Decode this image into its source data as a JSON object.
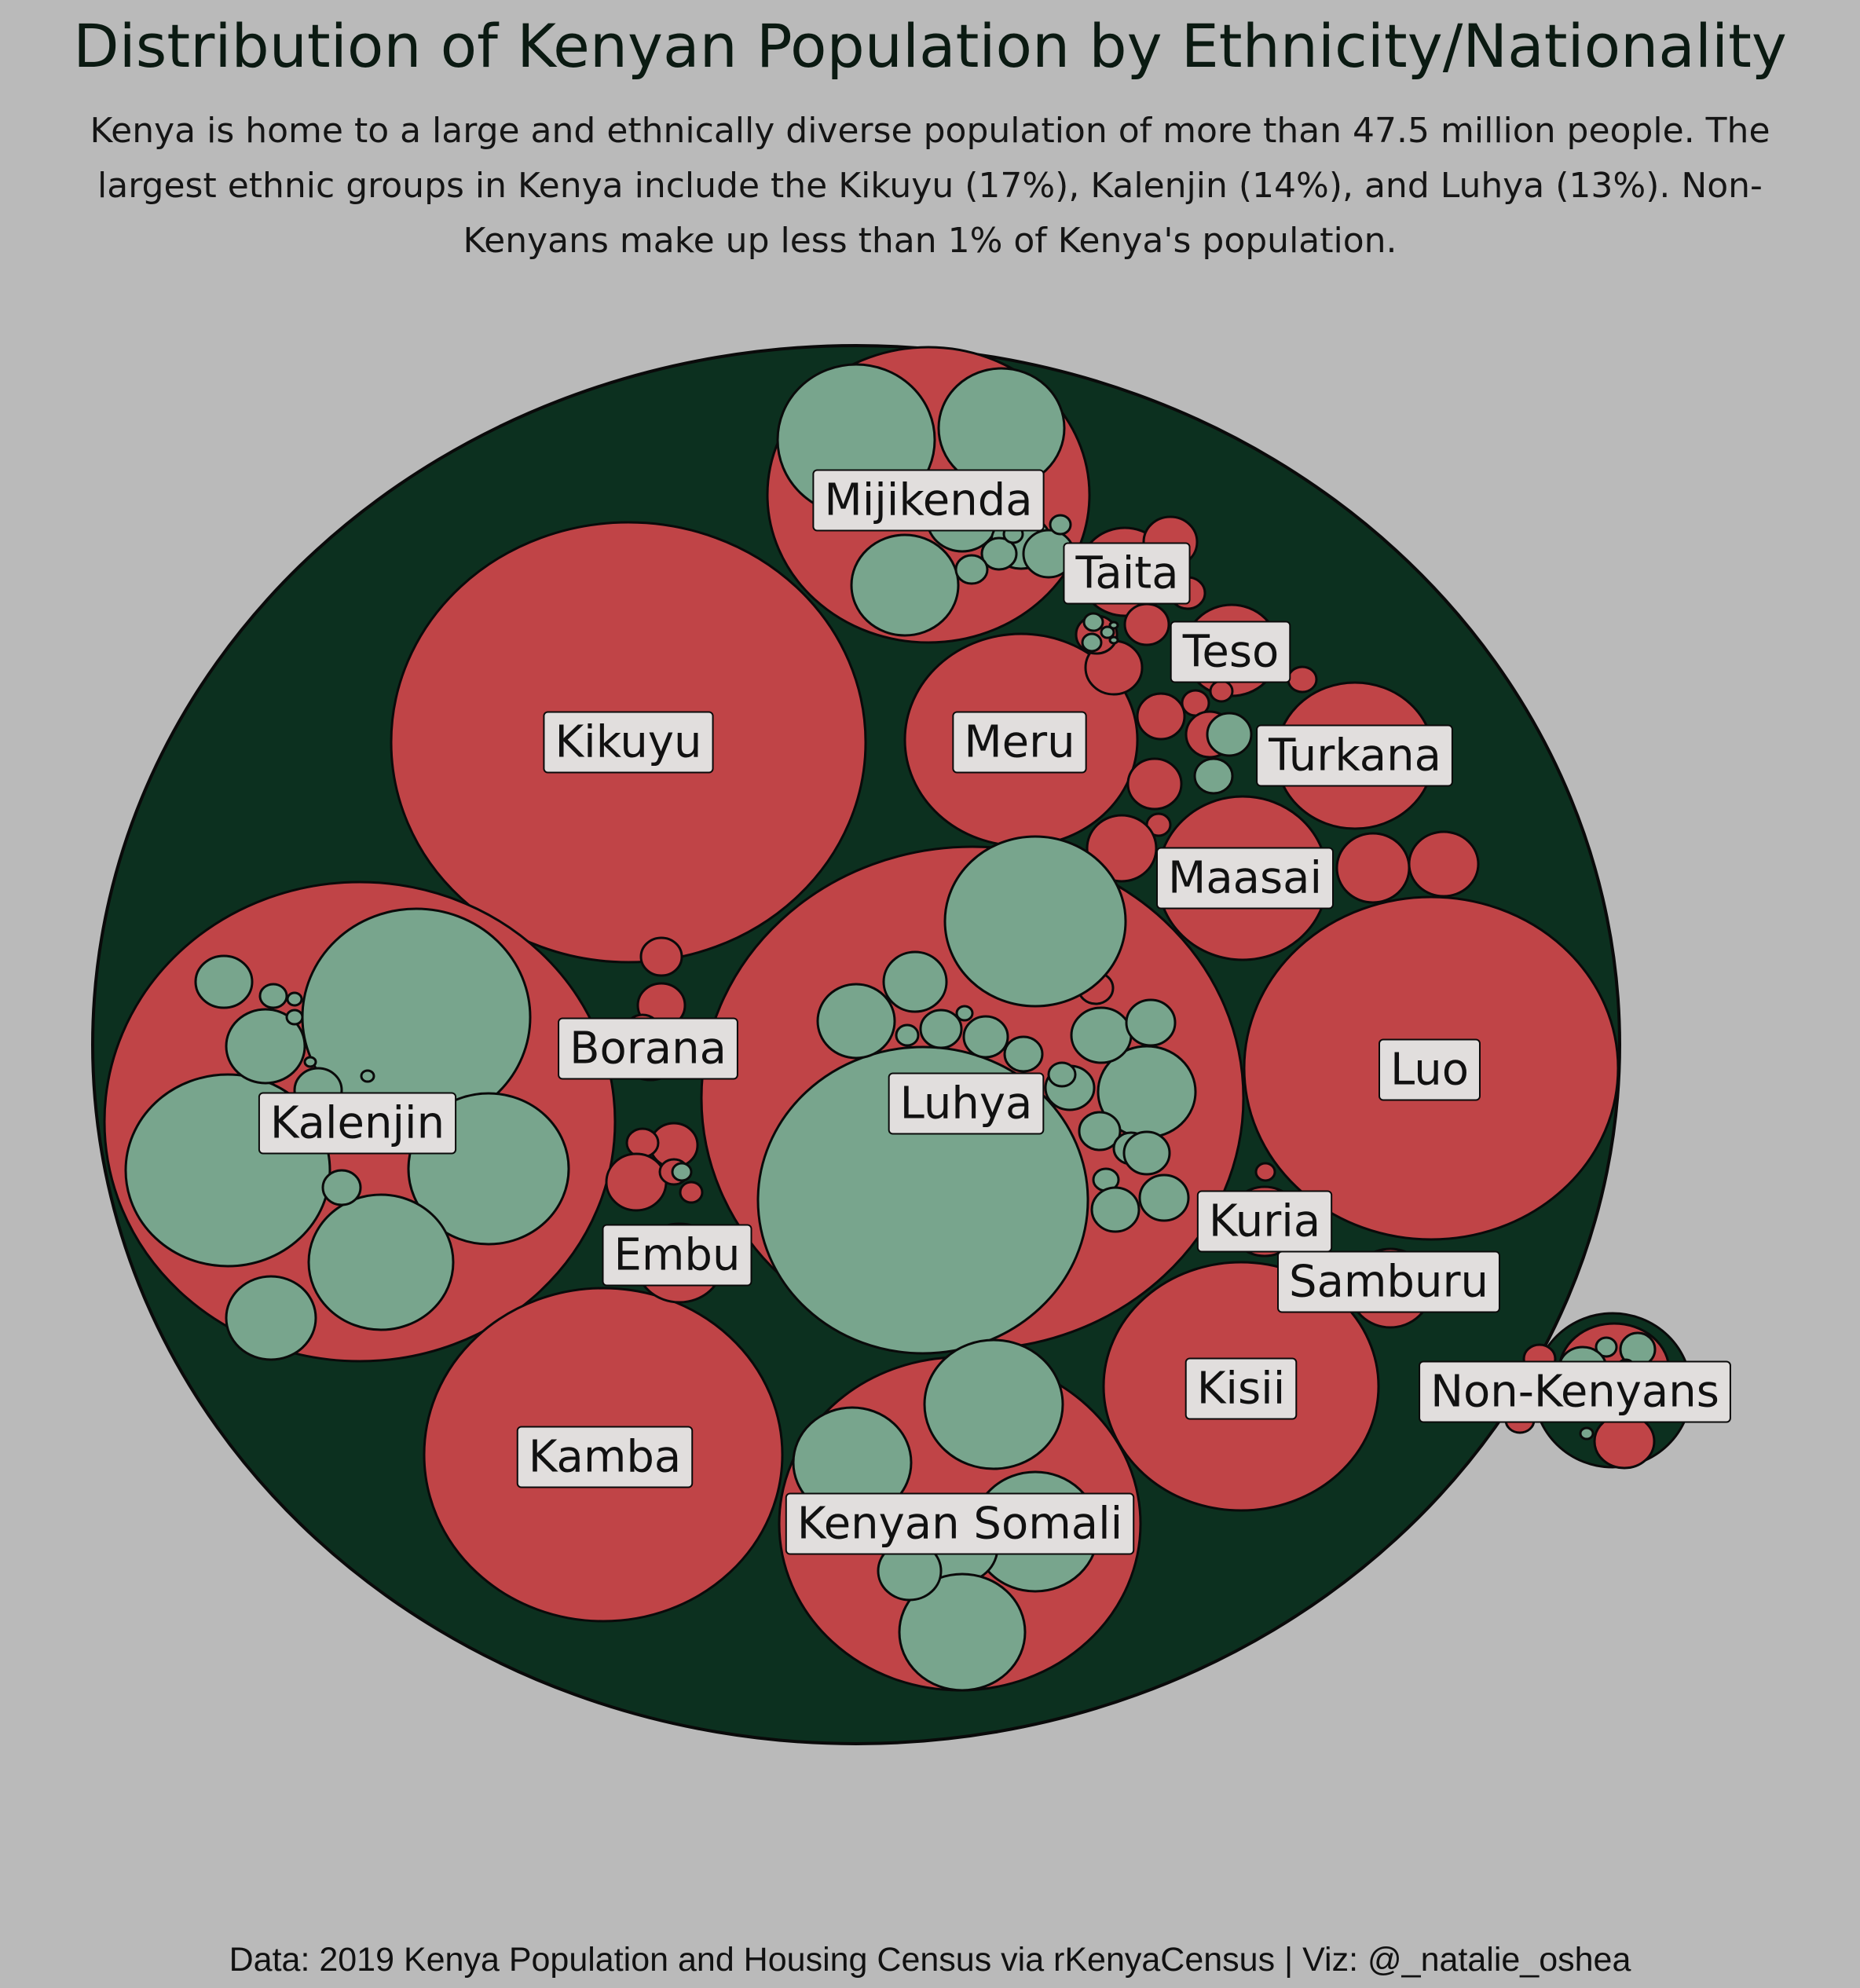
{
  "chart_data": {
    "type": "circle-packing",
    "title": "Distribution of Kenyan Population by Ethnicity/Nationality",
    "subtitle": "Kenya is home to a large and ethnically diverse population of more than 47.5 million people. The largest ethnic groups in Kenya include the Kikuyu (17%), Kalenjin (14%), and Luhya (13%). Non-Kenyans make up less than 1% of Kenya's population.",
    "caption": "Data: 2019 Kenya Population and Housing Census via rKenyaCensus | Viz: @_natalie_oshea",
    "total_population_millions": 47.5,
    "groups": [
      {
        "name": "Kikuyu",
        "percent": 17
      },
      {
        "name": "Kalenjin",
        "percent": 14
      },
      {
        "name": "Luhya",
        "percent": 13
      },
      {
        "name": "Luo"
      },
      {
        "name": "Kamba"
      },
      {
        "name": "Kenyan Somali"
      },
      {
        "name": "Kisii"
      },
      {
        "name": "Mijikenda"
      },
      {
        "name": "Meru"
      },
      {
        "name": "Maasai"
      },
      {
        "name": "Turkana"
      },
      {
        "name": "Embu"
      },
      {
        "name": "Taita"
      },
      {
        "name": "Teso"
      },
      {
        "name": "Kuria"
      },
      {
        "name": "Samburu"
      },
      {
        "name": "Borana"
      },
      {
        "name": "Non-Kenyans",
        "percent_max": 1
      }
    ]
  },
  "colors": {
    "background": "#bababa",
    "outer_circle": "#0c301f",
    "group_circle": "#c04447",
    "subgroup_circle": "#78a58d",
    "label_box": "#e1dedd",
    "stroke": "#0a0a0a"
  }
}
